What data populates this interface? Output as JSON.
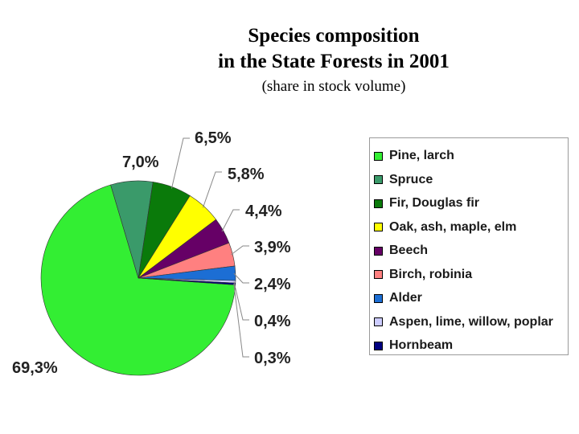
{
  "chart_data": {
    "type": "pie",
    "title_line1": "Species composition",
    "title_line2": "in the State Forests in 2001",
    "subtitle": "(share in stock volume)",
    "legend_position": "right",
    "slices": [
      {
        "name": "Pine, larch",
        "value": 69.3,
        "label": "69,3%",
        "color": "#33ee33"
      },
      {
        "name": "Spruce",
        "value": 7.0,
        "label": "7,0%",
        "color": "#3a9a6a"
      },
      {
        "name": "Fir, Douglas fir",
        "value": 6.5,
        "label": "6,5%",
        "color": "#0a7a0a"
      },
      {
        "name": "Oak, ash, maple, elm",
        "value": 5.8,
        "label": "5,8%",
        "color": "#ffff00"
      },
      {
        "name": "Beech",
        "value": 4.4,
        "label": "4,4%",
        "color": "#660066"
      },
      {
        "name": "Birch, robinia",
        "value": 3.9,
        "label": "3,9%",
        "color": "#ff8080"
      },
      {
        "name": "Alder",
        "value": 2.4,
        "label": "2,4%",
        "color": "#1c6ed4"
      },
      {
        "name": "Aspen, lime, willow, poplar",
        "value": 0.4,
        "label": "0,4%",
        "color": "#ccccff"
      },
      {
        "name": "Hornbeam",
        "value": 0.3,
        "label": "0,3%",
        "color": "#000080"
      }
    ]
  }
}
